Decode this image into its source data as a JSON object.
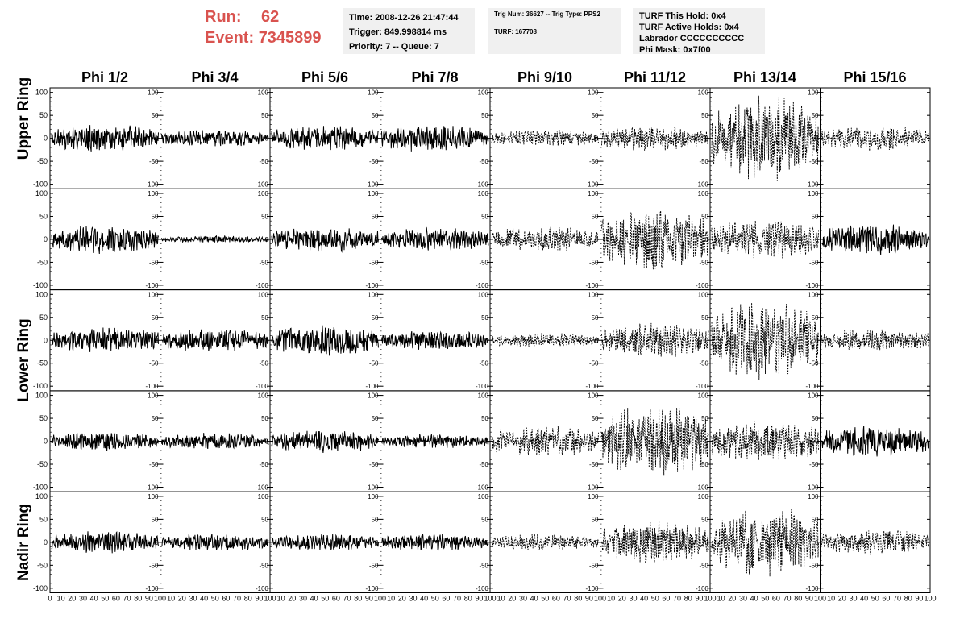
{
  "run_label": "Run:",
  "run_value": "62",
  "event_label": "Event:",
  "event_value": "7345899",
  "info_time": "Time: 2008-12-26 21:47:44",
  "info_trigger": "Trigger: 849.998814 ms",
  "info_priority": "Priority: 7 -- Queue: 7",
  "info_trig_num": "Trig Num: 36627 -- Trig Type: PPS2",
  "info_turf": "TURF: 167708",
  "info_turf_hold": "TURF This Hold: 0x4",
  "info_turf_active": "TURF Active Holds: 0x4",
  "info_labrador": "Labrador CCCCCCCCCC",
  "info_phi_mask": "Phi Mask: 0x7f00",
  "columns": [
    "Phi 1/2",
    "Phi 3/4",
    "Phi 5/6",
    "Phi 7/8",
    "Phi 9/10",
    "Phi 11/12",
    "Phi 13/14",
    "Phi 15/16"
  ],
  "rows": [
    "Upper Ring",
    "Upper Ring",
    "Lower Ring",
    "Lower Ring",
    "Nadir Ring"
  ],
  "row_labels": [
    "Upper Ring",
    "Lower Ring",
    "Nadir Ring"
  ],
  "chart_data": {
    "type": "line",
    "grid": "5x8 panels",
    "xlim": [
      0,
      100
    ],
    "ylim": [
      -110,
      110
    ],
    "y_ticks": [
      100,
      50,
      0,
      -50,
      -100
    ],
    "y_tick_labels": [
      "100",
      "50",
      "0",
      "-50",
      "-100"
    ],
    "x_tick_labels_first": [
      "0",
      "10",
      "20",
      "30",
      "40",
      "50",
      "60",
      "70",
      "80",
      "90",
      "100"
    ],
    "x_tick_labels_other": [
      "10",
      "20",
      "30",
      "40",
      "50",
      "60",
      "70",
      "80",
      "90",
      "100"
    ],
    "line_styles": [
      "solid",
      "solid",
      "solid",
      "solid",
      "dashed",
      "dashed",
      "dashed",
      "dashed"
    ],
    "amplitudes": [
      [
        20,
        12,
        18,
        20,
        12,
        18,
        60,
        18
      ],
      [
        20,
        5,
        18,
        16,
        18,
        45,
        28,
        22
      ],
      [
        18,
        16,
        22,
        14,
        10,
        25,
        55,
        16
      ],
      [
        14,
        12,
        16,
        10,
        22,
        52,
        30,
        22
      ],
      [
        16,
        12,
        12,
        12,
        12,
        30,
        50,
        18
      ]
    ],
    "line_styles_per_panel": [
      [
        "solid",
        "solid",
        "solid",
        "solid",
        "dashed",
        "dashed",
        "dashed",
        "dashed"
      ],
      [
        "solid",
        "solid",
        "solid",
        "solid",
        "dashed",
        "dashed",
        "dashed",
        "solid"
      ],
      [
        "solid",
        "solid",
        "solid",
        "solid",
        "dashed",
        "dashed",
        "dashed",
        "dashed"
      ],
      [
        "solid",
        "solid",
        "solid",
        "solid",
        "dashed",
        "dashed",
        "dashed",
        "solid"
      ],
      [
        "solid",
        "solid",
        "solid",
        "solid",
        "dashed",
        "dashed",
        "dashed",
        "dashed"
      ]
    ]
  }
}
